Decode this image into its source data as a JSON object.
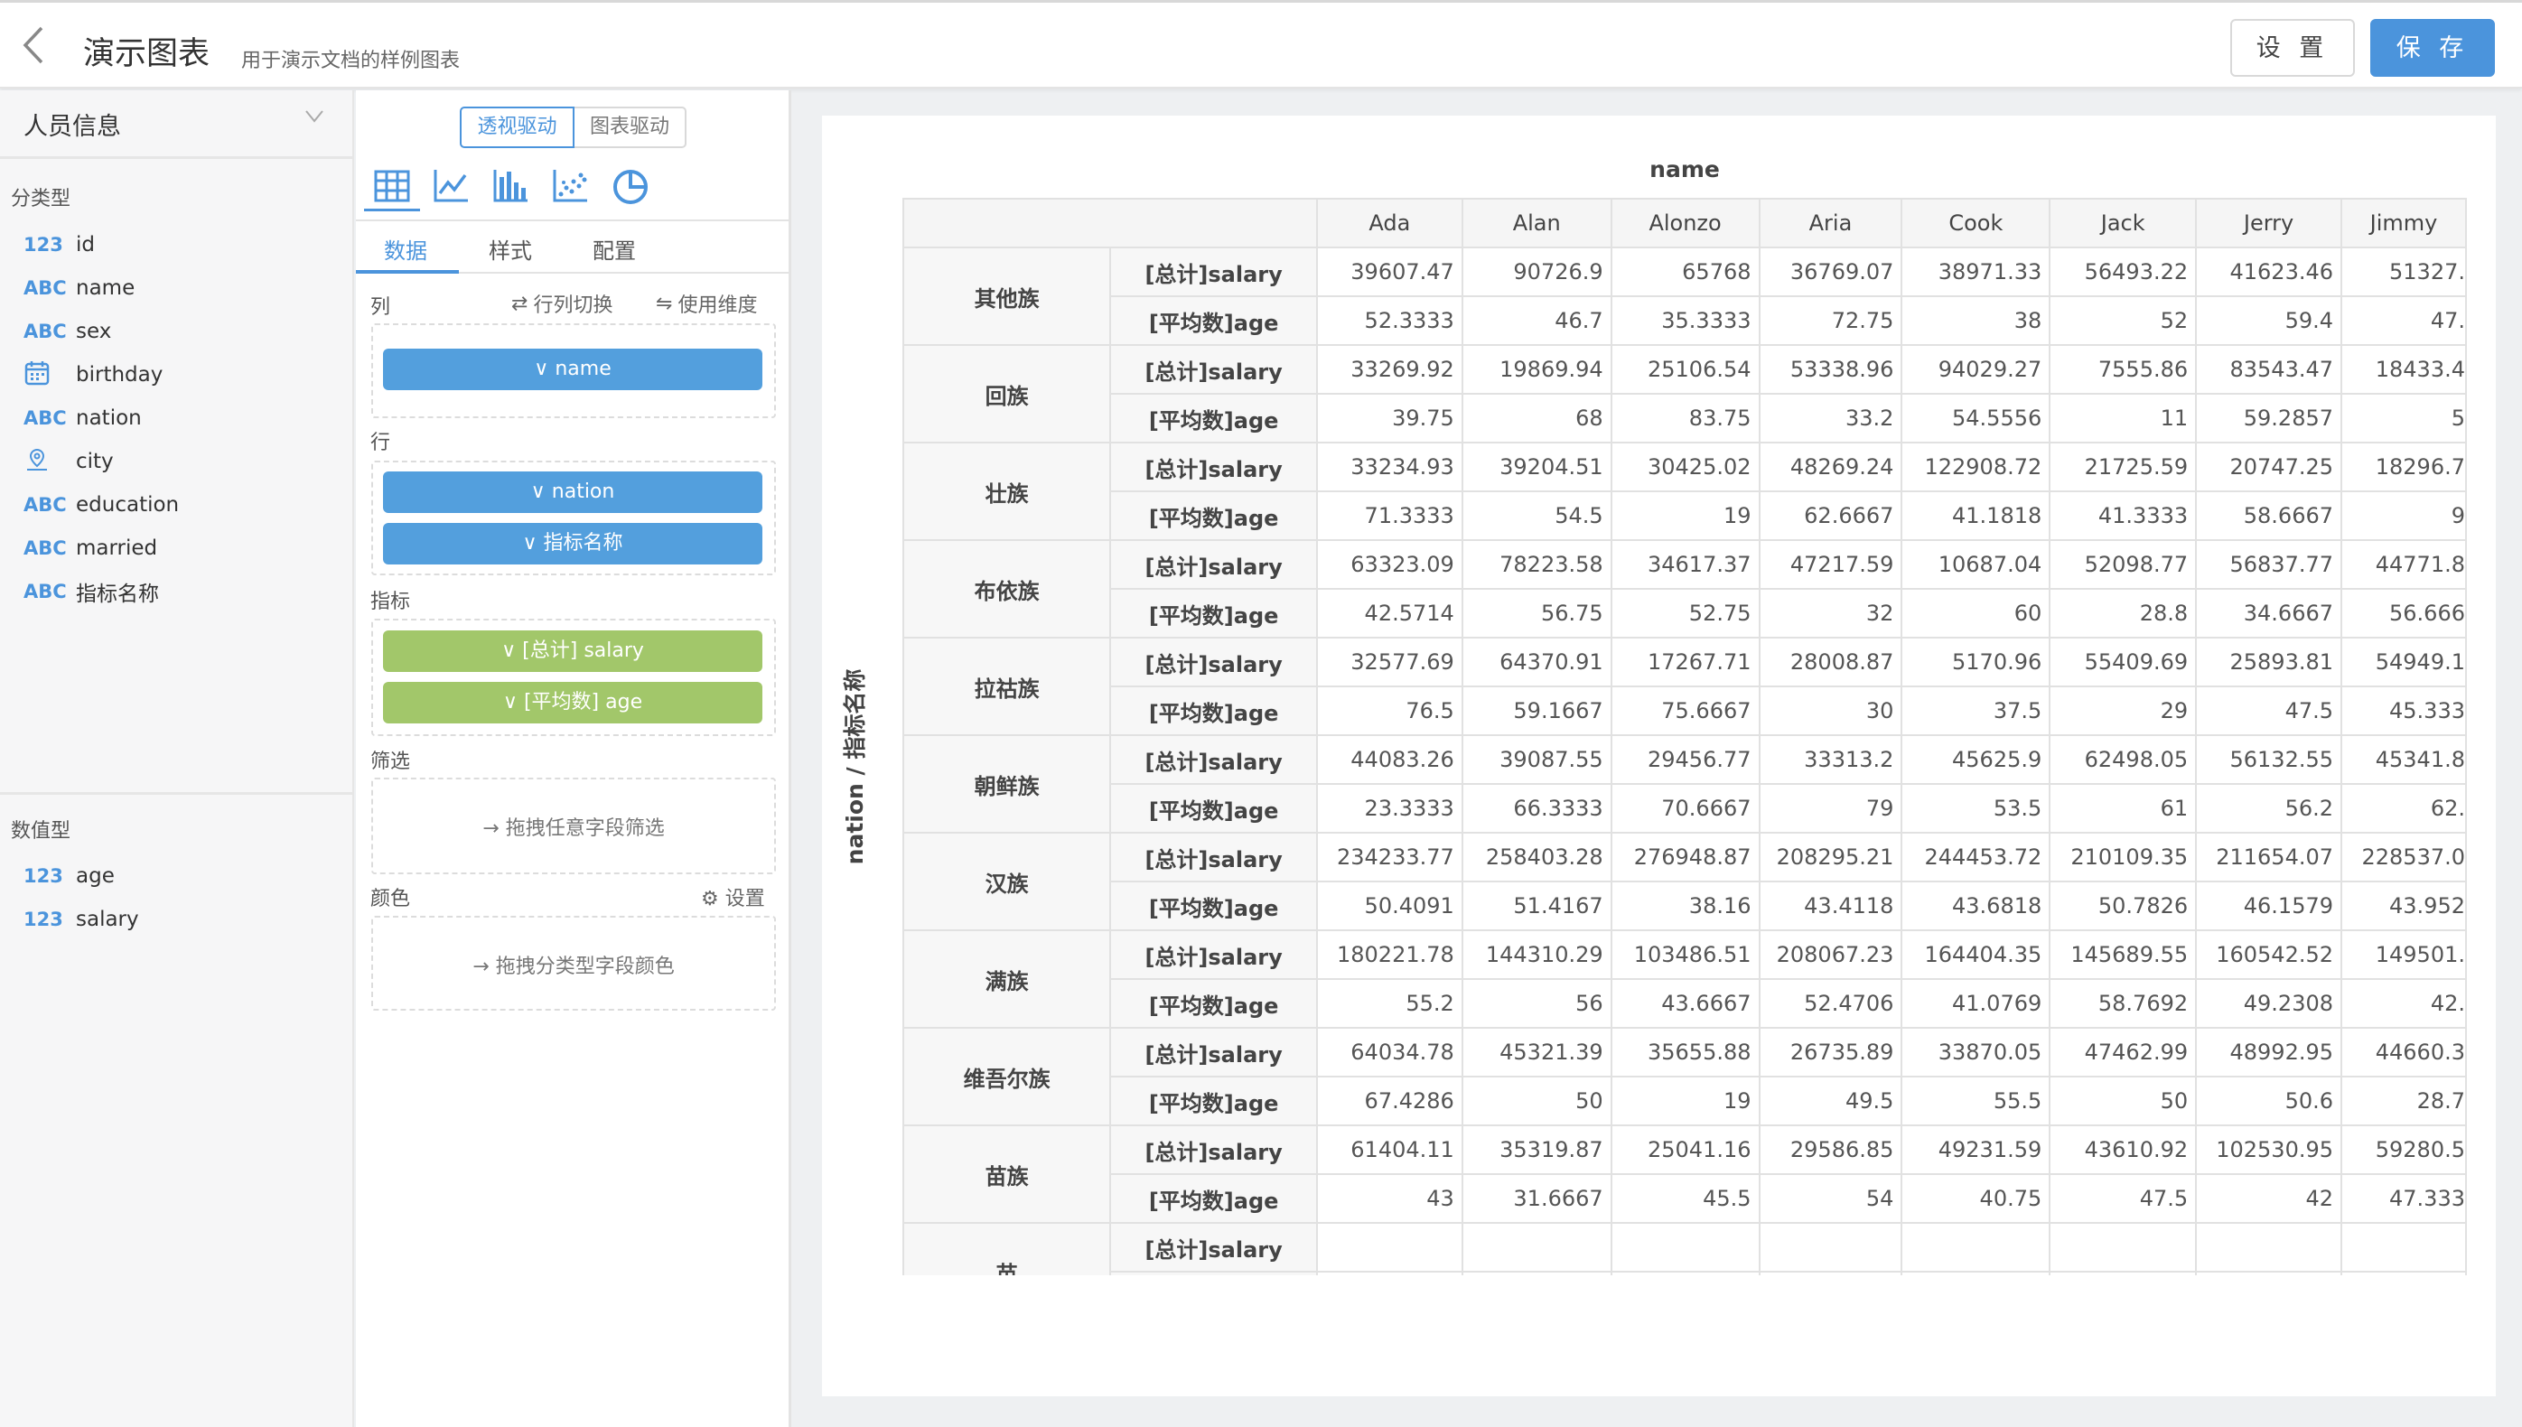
{
  "header": {
    "title": "演示图表",
    "subtitle": "用于演示文档的样例图表",
    "settings_label": "设 置",
    "save_label": "保 存"
  },
  "sidebar": {
    "dataset": "人员信息",
    "categorical_title": "分类型",
    "categorical": [
      {
        "type": "123",
        "name": "id"
      },
      {
        "type": "ABC",
        "name": "name"
      },
      {
        "type": "ABC",
        "name": "sex"
      },
      {
        "type": "calendar-icon",
        "name": "birthday"
      },
      {
        "type": "ABC",
        "name": "nation"
      },
      {
        "type": "city-icon",
        "name": "city"
      },
      {
        "type": "ABC",
        "name": "education"
      },
      {
        "type": "ABC",
        "name": "married"
      },
      {
        "type": "ABC",
        "name": "指标名称"
      }
    ],
    "numeric_title": "数值型",
    "numeric": [
      {
        "type": "123",
        "name": "age"
      },
      {
        "type": "123",
        "name": "salary"
      }
    ]
  },
  "config": {
    "mode_pivot": "透视驱动",
    "mode_chart": "图表驱动",
    "chart_types": [
      "table-icon",
      "line-chart-icon",
      "bar-chart-icon",
      "scatter-icon",
      "pie-chart-icon"
    ],
    "tabs": [
      "数据",
      "样式",
      "配置"
    ],
    "columns_label": "列",
    "swap_label": "行列切换",
    "use_dim_label": "使用维度",
    "columns": [
      "name"
    ],
    "rows_label": "行",
    "rows": [
      "nation",
      "指标名称"
    ],
    "metrics_label": "指标",
    "metrics": [
      "[总计] salary",
      "[平均数] age"
    ],
    "filter_label": "筛选",
    "filter_hint": "拖拽任意字段筛选",
    "color_label": "颜色",
    "color_settings": "设置",
    "color_hint": "拖拽分类型字段颜色",
    "colors": {
      "accent": "#4b94dc",
      "dimension": "#539fdd",
      "metric": "#a2c76a"
    }
  },
  "table": {
    "title": "name",
    "row_axis_label": "nation / 指标名称",
    "columns": [
      "Ada",
      "Alan",
      "Alonzo",
      "Aria",
      "Cook",
      "Jack",
      "Jerry",
      "Jimmy"
    ],
    "groups": [
      {
        "nation": "其他族",
        "rows": [
          {
            "metric": "[总计]salary",
            "values": [
              "39607.47",
              "90726.9",
              "65768",
              "36769.07",
              "38971.33",
              "56493.22",
              "41623.46",
              "51327."
            ]
          },
          {
            "metric": "[平均数]age",
            "values": [
              "52.3333",
              "46.7",
              "35.3333",
              "72.75",
              "38",
              "52",
              "59.4",
              "47."
            ]
          }
        ]
      },
      {
        "nation": "回族",
        "rows": [
          {
            "metric": "[总计]salary",
            "values": [
              "33269.92",
              "19869.94",
              "25106.54",
              "53338.96",
              "94029.27",
              "7555.86",
              "83543.47",
              "18433.4"
            ]
          },
          {
            "metric": "[平均数]age",
            "values": [
              "39.75",
              "68",
              "83.75",
              "33.2",
              "54.5556",
              "11",
              "59.2857",
              "5"
            ]
          }
        ]
      },
      {
        "nation": "壮族",
        "rows": [
          {
            "metric": "[总计]salary",
            "values": [
              "33234.93",
              "39204.51",
              "30425.02",
              "48269.24",
              "122908.72",
              "21725.59",
              "20747.25",
              "18296.7"
            ]
          },
          {
            "metric": "[平均数]age",
            "values": [
              "71.3333",
              "54.5",
              "19",
              "62.6667",
              "41.1818",
              "41.3333",
              "58.6667",
              "9"
            ]
          }
        ]
      },
      {
        "nation": "布依族",
        "rows": [
          {
            "metric": "[总计]salary",
            "values": [
              "63323.09",
              "78223.58",
              "34617.37",
              "47217.59",
              "10687.04",
              "52098.77",
              "56837.77",
              "44771.8"
            ]
          },
          {
            "metric": "[平均数]age",
            "values": [
              "42.5714",
              "56.75",
              "52.75",
              "32",
              "60",
              "28.8",
              "34.6667",
              "56.666"
            ]
          }
        ]
      },
      {
        "nation": "拉祜族",
        "rows": [
          {
            "metric": "[总计]salary",
            "values": [
              "32577.69",
              "64370.91",
              "17267.71",
              "28008.87",
              "5170.96",
              "55409.69",
              "25893.81",
              "54949.1"
            ]
          },
          {
            "metric": "[平均数]age",
            "values": [
              "76.5",
              "59.1667",
              "75.6667",
              "30",
              "37.5",
              "29",
              "47.5",
              "45.333"
            ]
          }
        ]
      },
      {
        "nation": "朝鲜族",
        "rows": [
          {
            "metric": "[总计]salary",
            "values": [
              "44083.26",
              "39087.55",
              "29456.77",
              "33313.2",
              "45625.9",
              "62498.05",
              "56132.55",
              "45341.8"
            ]
          },
          {
            "metric": "[平均数]age",
            "values": [
              "23.3333",
              "66.3333",
              "70.6667",
              "79",
              "53.5",
              "61",
              "56.2",
              "62."
            ]
          }
        ]
      },
      {
        "nation": "汉族",
        "rows": [
          {
            "metric": "[总计]salary",
            "values": [
              "234233.77",
              "258403.28",
              "276948.87",
              "208295.21",
              "244453.72",
              "210109.35",
              "211654.07",
              "228537.0"
            ]
          },
          {
            "metric": "[平均数]age",
            "values": [
              "50.4091",
              "51.4167",
              "38.16",
              "43.4118",
              "43.6818",
              "50.7826",
              "46.1579",
              "43.952"
            ]
          }
        ]
      },
      {
        "nation": "满族",
        "rows": [
          {
            "metric": "[总计]salary",
            "values": [
              "180221.78",
              "144310.29",
              "103486.51",
              "208067.23",
              "164404.35",
              "145689.55",
              "160542.52",
              "149501."
            ]
          },
          {
            "metric": "[平均数]age",
            "values": [
              "55.2",
              "56",
              "43.6667",
              "52.4706",
              "41.0769",
              "58.7692",
              "49.2308",
              "42."
            ]
          }
        ]
      },
      {
        "nation": "维吾尔族",
        "rows": [
          {
            "metric": "[总计]salary",
            "values": [
              "64034.78",
              "45321.39",
              "35655.88",
              "26735.89",
              "33870.05",
              "47462.99",
              "48992.95",
              "44660.3"
            ]
          },
          {
            "metric": "[平均数]age",
            "values": [
              "67.4286",
              "50",
              "19",
              "49.5",
              "55.5",
              "50",
              "50.6",
              "28.7"
            ]
          }
        ]
      },
      {
        "nation": "苗族",
        "rows": [
          {
            "metric": "[总计]salary",
            "values": [
              "61404.11",
              "35319.87",
              "25041.16",
              "29586.85",
              "49231.59",
              "43610.92",
              "102530.95",
              "59280.5"
            ]
          },
          {
            "metric": "[平均数]age",
            "values": [
              "43",
              "31.6667",
              "45.5",
              "54",
              "40.75",
              "47.5",
              "42",
              "47.333"
            ]
          }
        ]
      },
      {
        "nation": "苗",
        "rows": [
          {
            "metric": "[总计]salary",
            "values": [
              "",
              "",
              "",
              "",
              "",
              "",
              "",
              ""
            ]
          },
          {
            "metric": "",
            "values": [
              "",
              "",
              "",
              "",
              "",
              "",
              "",
              ""
            ]
          }
        ]
      }
    ]
  }
}
